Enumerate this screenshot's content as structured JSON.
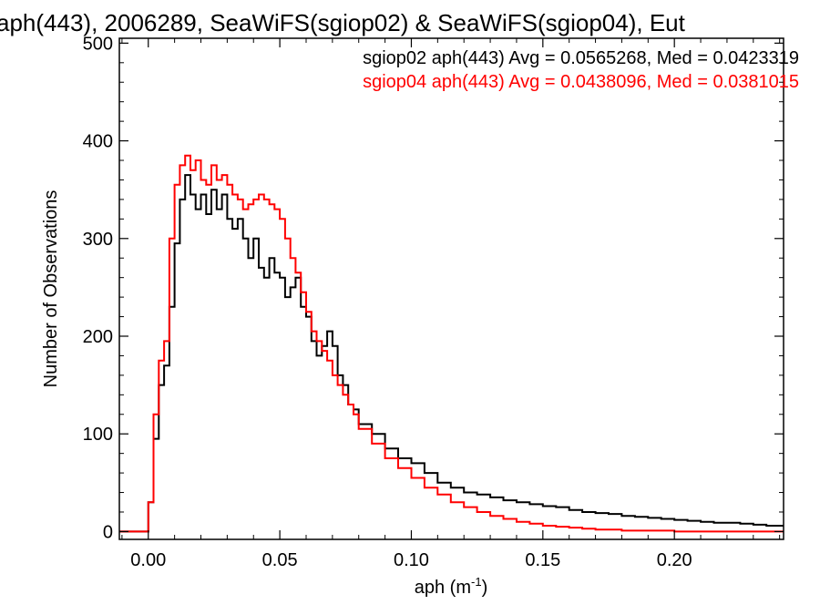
{
  "chart_data": {
    "type": "line",
    "title": "aph(443), 2006289, SeaWiFS(sgiop02) & SeaWiFS(sgiop04), Eut",
    "xlabel": "aph (m",
    "xlabel_sup": "-1",
    "xlabel_close": ")",
    "ylabel": "Number of Observations",
    "xlim": [
      -0.011,
      0.2415
    ],
    "ylim": [
      -8,
      505
    ],
    "xticks": [
      0.0,
      0.05,
      0.1,
      0.15,
      0.2
    ],
    "xtick_labels": [
      "0.00",
      "0.05",
      "0.10",
      "0.15",
      "0.20"
    ],
    "yticks": [
      0,
      100,
      200,
      300,
      400,
      500
    ],
    "ytick_labels": [
      "0",
      "100",
      "200",
      "300",
      "400",
      "500"
    ],
    "grid": false,
    "legend_placement": "top-right",
    "series": [
      {
        "name": "sgiop02",
        "color": "#000000",
        "label": "sgiop02 aph(443) Avg = 0.0565268, Med = 0.0423319",
        "points": [
          [
            -0.011,
            0
          ],
          [
            -0.0005,
            0
          ],
          [
            0.0,
            30
          ],
          [
            0.002,
            95
          ],
          [
            0.004,
            150
          ],
          [
            0.006,
            170
          ],
          [
            0.008,
            230
          ],
          [
            0.01,
            295
          ],
          [
            0.012,
            340
          ],
          [
            0.014,
            365
          ],
          [
            0.016,
            345
          ],
          [
            0.018,
            330
          ],
          [
            0.02,
            345
          ],
          [
            0.022,
            325
          ],
          [
            0.024,
            350
          ],
          [
            0.026,
            330
          ],
          [
            0.028,
            345
          ],
          [
            0.03,
            320
          ],
          [
            0.032,
            310
          ],
          [
            0.034,
            320
          ],
          [
            0.036,
            300
          ],
          [
            0.038,
            280
          ],
          [
            0.04,
            300
          ],
          [
            0.042,
            270
          ],
          [
            0.044,
            260
          ],
          [
            0.046,
            280
          ],
          [
            0.048,
            265
          ],
          [
            0.05,
            260
          ],
          [
            0.052,
            240
          ],
          [
            0.054,
            250
          ],
          [
            0.056,
            260
          ],
          [
            0.058,
            230
          ],
          [
            0.06,
            220
          ],
          [
            0.062,
            195
          ],
          [
            0.064,
            180
          ],
          [
            0.066,
            190
          ],
          [
            0.068,
            205
          ],
          [
            0.07,
            190
          ],
          [
            0.072,
            160
          ],
          [
            0.074,
            150
          ],
          [
            0.076,
            130
          ],
          [
            0.078,
            125
          ],
          [
            0.08,
            110
          ],
          [
            0.085,
            100
          ],
          [
            0.09,
            85
          ],
          [
            0.095,
            75
          ],
          [
            0.1,
            70
          ],
          [
            0.105,
            60
          ],
          [
            0.11,
            50
          ],
          [
            0.115,
            45
          ],
          [
            0.12,
            40
          ],
          [
            0.125,
            38
          ],
          [
            0.13,
            35
          ],
          [
            0.135,
            32
          ],
          [
            0.14,
            30
          ],
          [
            0.145,
            28
          ],
          [
            0.15,
            26
          ],
          [
            0.155,
            25
          ],
          [
            0.16,
            22
          ],
          [
            0.165,
            20
          ],
          [
            0.17,
            19
          ],
          [
            0.175,
            18
          ],
          [
            0.18,
            16
          ],
          [
            0.185,
            15
          ],
          [
            0.19,
            14
          ],
          [
            0.195,
            13
          ],
          [
            0.2,
            12
          ],
          [
            0.205,
            11
          ],
          [
            0.21,
            10
          ],
          [
            0.215,
            9
          ],
          [
            0.22,
            9
          ],
          [
            0.225,
            8
          ],
          [
            0.23,
            7
          ],
          [
            0.235,
            6
          ],
          [
            0.2415,
            5
          ]
        ]
      },
      {
        "name": "sgiop04",
        "color": "#ff0000",
        "label": "sgiop04 aph(443) Avg = 0.0438096, Med = 0.0381015",
        "points": [
          [
            -0.011,
            0
          ],
          [
            -0.0005,
            0
          ],
          [
            0.0,
            30
          ],
          [
            0.002,
            120
          ],
          [
            0.004,
            175
          ],
          [
            0.006,
            195
          ],
          [
            0.008,
            300
          ],
          [
            0.01,
            355
          ],
          [
            0.012,
            375
          ],
          [
            0.014,
            385
          ],
          [
            0.016,
            370
          ],
          [
            0.018,
            380
          ],
          [
            0.02,
            360
          ],
          [
            0.022,
            355
          ],
          [
            0.024,
            375
          ],
          [
            0.026,
            360
          ],
          [
            0.028,
            365
          ],
          [
            0.03,
            355
          ],
          [
            0.032,
            345
          ],
          [
            0.034,
            340
          ],
          [
            0.036,
            330
          ],
          [
            0.038,
            335
          ],
          [
            0.04,
            340
          ],
          [
            0.042,
            345
          ],
          [
            0.044,
            340
          ],
          [
            0.046,
            335
          ],
          [
            0.048,
            330
          ],
          [
            0.05,
            320
          ],
          [
            0.052,
            300
          ],
          [
            0.054,
            280
          ],
          [
            0.056,
            265
          ],
          [
            0.058,
            245
          ],
          [
            0.06,
            225
          ],
          [
            0.062,
            205
          ],
          [
            0.064,
            195
          ],
          [
            0.066,
            185
          ],
          [
            0.068,
            175
          ],
          [
            0.07,
            160
          ],
          [
            0.072,
            150
          ],
          [
            0.074,
            140
          ],
          [
            0.076,
            130
          ],
          [
            0.078,
            120
          ],
          [
            0.08,
            105
          ],
          [
            0.085,
            90
          ],
          [
            0.09,
            75
          ],
          [
            0.095,
            65
          ],
          [
            0.1,
            55
          ],
          [
            0.105,
            45
          ],
          [
            0.11,
            38
          ],
          [
            0.115,
            30
          ],
          [
            0.12,
            25
          ],
          [
            0.125,
            20
          ],
          [
            0.13,
            16
          ],
          [
            0.135,
            13
          ],
          [
            0.14,
            10
          ],
          [
            0.145,
            8
          ],
          [
            0.15,
            6
          ],
          [
            0.155,
            5
          ],
          [
            0.16,
            4
          ],
          [
            0.165,
            3
          ],
          [
            0.17,
            2
          ],
          [
            0.18,
            1
          ],
          [
            0.19,
            1
          ],
          [
            0.2,
            0
          ],
          [
            0.2415,
            0
          ]
        ]
      }
    ]
  }
}
